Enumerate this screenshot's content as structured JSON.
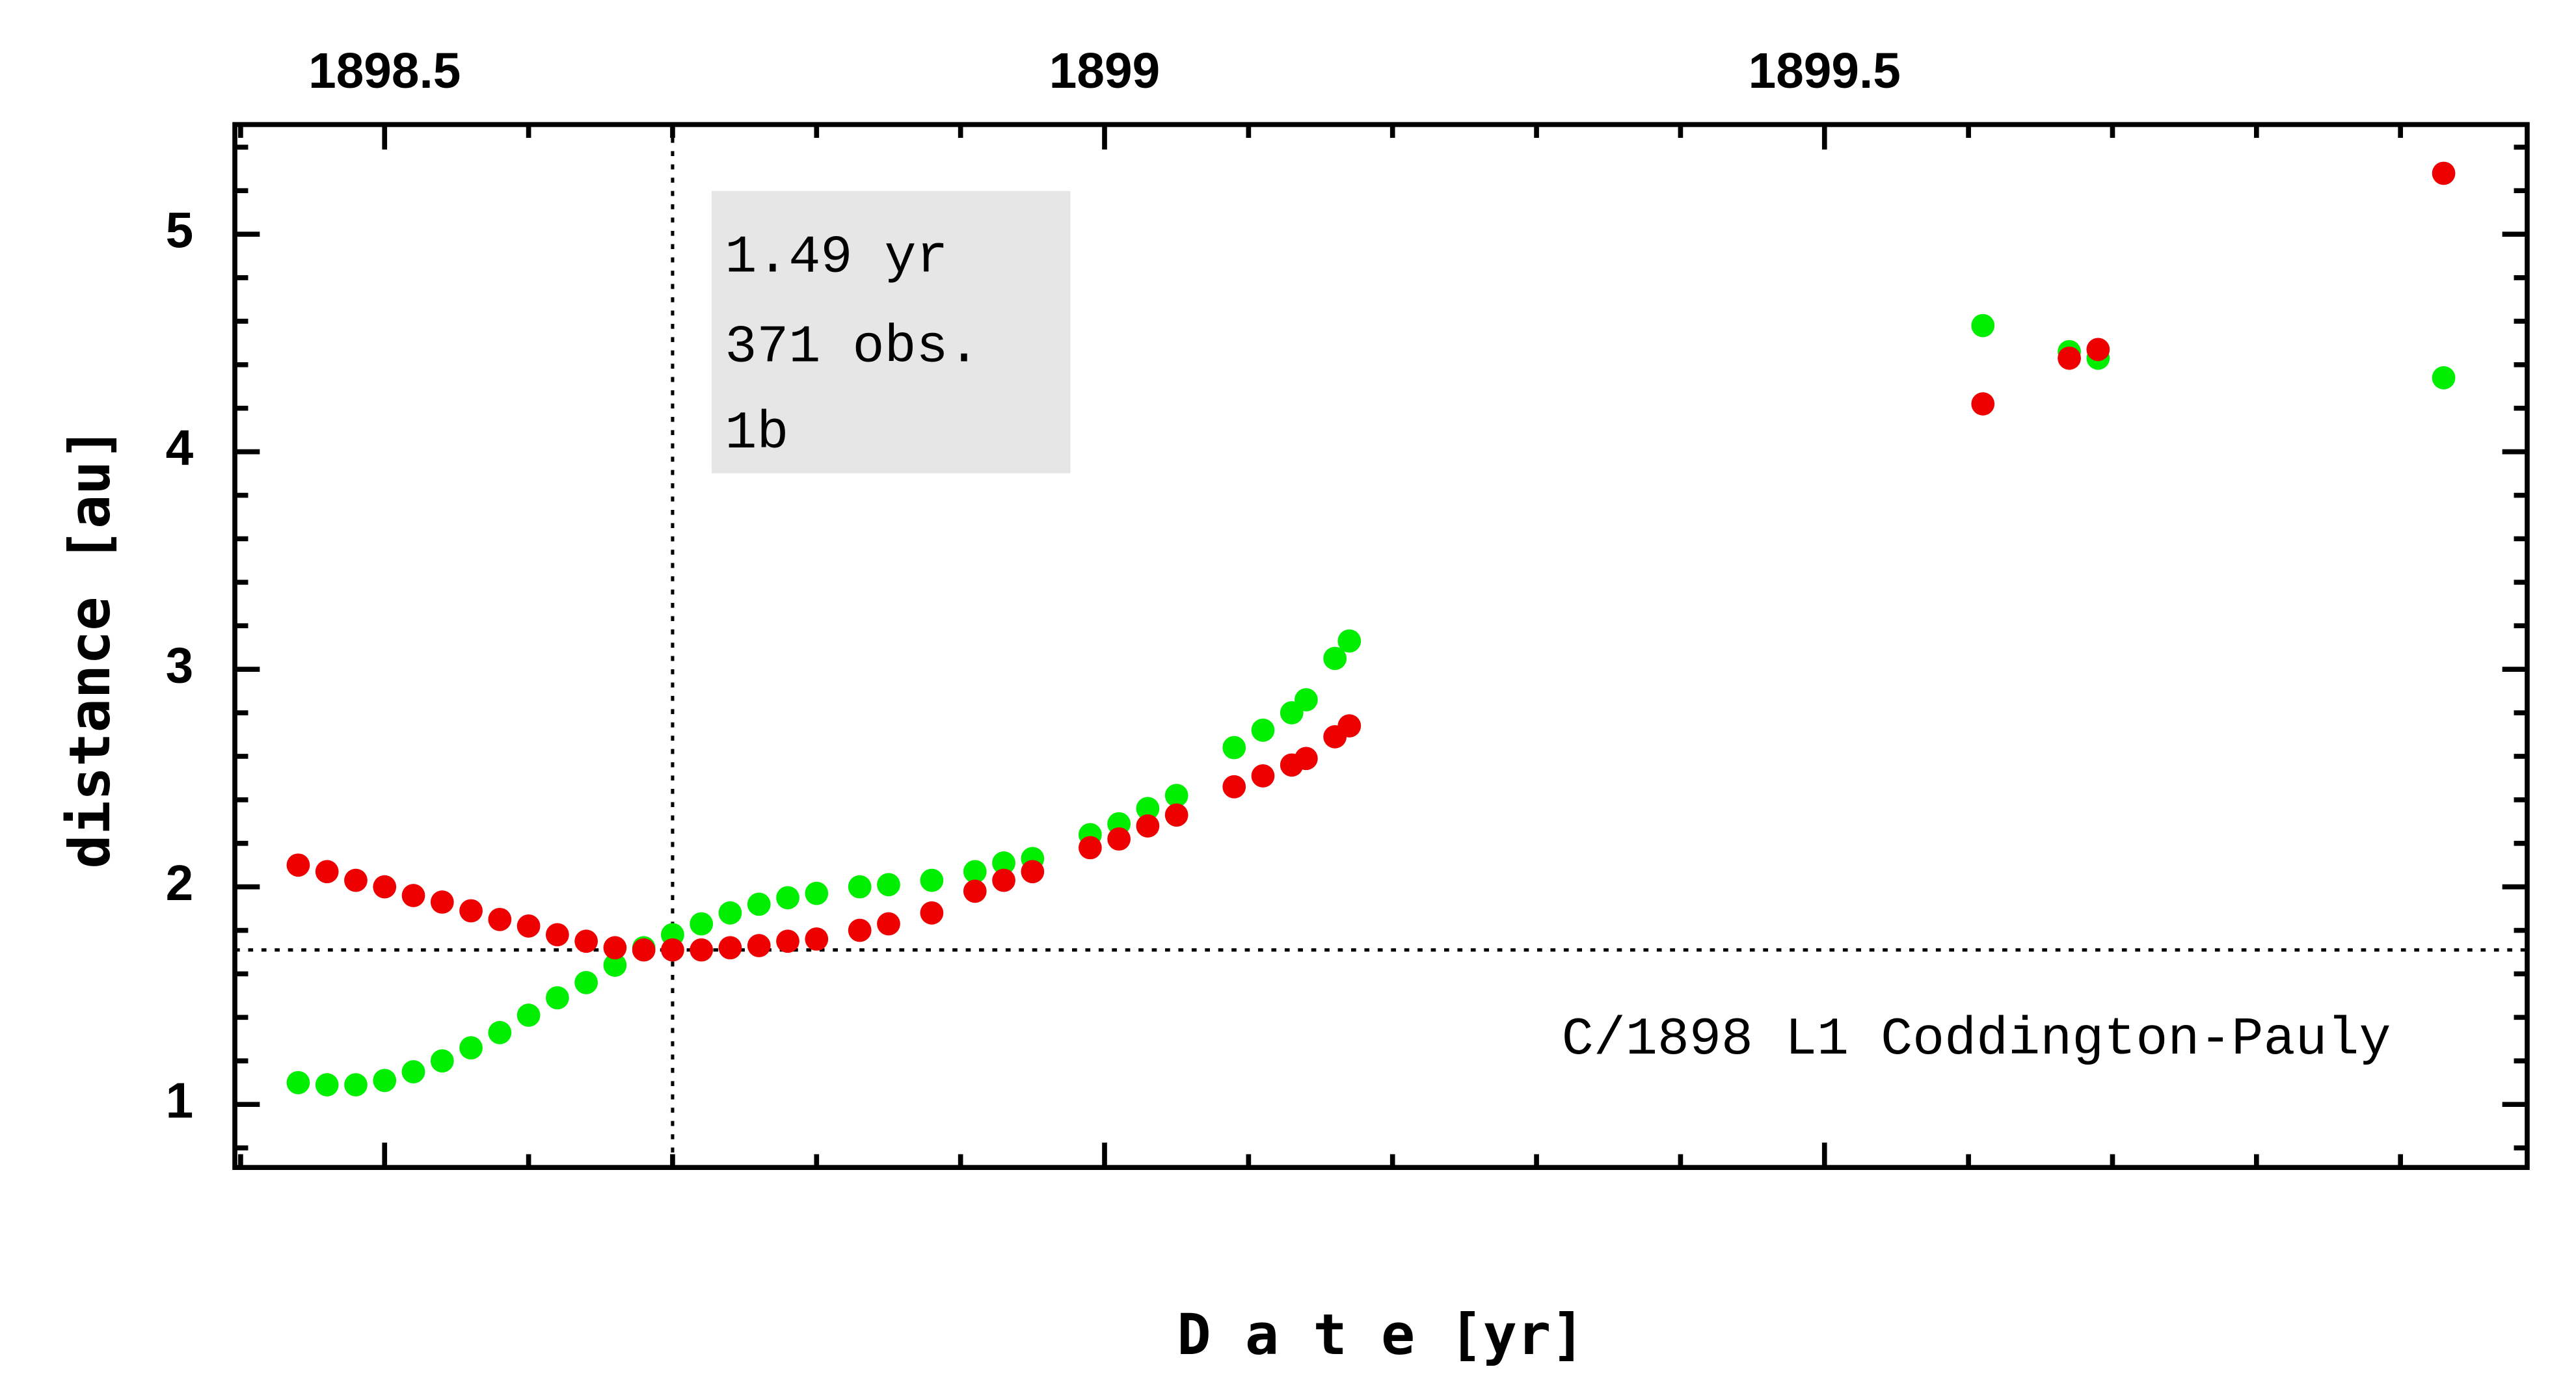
{
  "chart_data": {
    "type": "scatter",
    "xlabel": "D a t e [yr]",
    "ylabel": "distance [au]",
    "annotations": [
      "1.49 yr",
      "371 obs.",
      "1b"
    ],
    "label": "C/1898 L1 Coddington-Pauly",
    "x": [
      1898.44,
      1898.46,
      1898.48,
      1898.5,
      1898.52,
      1898.54,
      1898.56,
      1898.58,
      1898.6,
      1898.62,
      1898.64,
      1898.66,
      1898.68,
      1898.7,
      1898.72,
      1898.74,
      1898.76,
      1898.78,
      1898.8,
      1898.83,
      1898.85,
      1898.88,
      1898.91,
      1898.93,
      1898.95,
      1898.99,
      1899.01,
      1899.03,
      1899.05,
      1899.09,
      1899.11,
      1899.13,
      1899.14,
      1899.16,
      1899.17,
      1899.61,
      1899.67,
      1899.69,
      1899.93
    ],
    "series": [
      {
        "color": "#00ee00",
        "values": [
          1.1,
          1.09,
          1.09,
          1.11,
          1.15,
          1.2,
          1.26,
          1.33,
          1.41,
          1.49,
          1.56,
          1.64,
          1.72,
          1.78,
          1.83,
          1.88,
          1.92,
          1.95,
          1.97,
          2.0,
          2.01,
          2.03,
          2.07,
          2.11,
          2.13,
          2.24,
          2.29,
          2.36,
          2.42,
          2.64,
          2.72,
          2.8,
          2.86,
          3.05,
          3.13,
          4.58,
          4.46,
          4.43,
          4.34
        ]
      },
      {
        "color": "#ee0000",
        "values": [
          2.1,
          2.07,
          2.03,
          2.0,
          1.96,
          1.93,
          1.89,
          1.85,
          1.82,
          1.78,
          1.75,
          1.72,
          1.71,
          1.71,
          1.71,
          1.72,
          1.73,
          1.75,
          1.76,
          1.8,
          1.83,
          1.88,
          1.98,
          2.03,
          2.07,
          2.18,
          2.22,
          2.28,
          2.33,
          2.46,
          2.51,
          2.56,
          2.59,
          2.69,
          2.74,
          4.22,
          4.43,
          4.47,
          5.28
        ]
      }
    ],
    "vline": 1898.7,
    "hline": 1.71,
    "xlim": [
      1898.396,
      1899.988
    ],
    "ylim": [
      0.71,
      5.504
    ],
    "xticks": [
      1898.5,
      1899,
      1899.5
    ],
    "yticks": [
      1,
      2,
      3,
      4,
      5
    ],
    "xminorticks": [
      1898.4,
      1898.6,
      1898.7,
      1898.8,
      1898.9,
      1899.1,
      1899.2,
      1899.3,
      1899.4,
      1899.6,
      1899.7,
      1899.8,
      1899.9
    ],
    "yminorticks": [
      0.8,
      1.2,
      1.4,
      1.6,
      1.8,
      2.2,
      2.4,
      2.6,
      2.8,
      3.2,
      3.4,
      3.6,
      3.8,
      4.2,
      4.4,
      4.6,
      4.8,
      5.2,
      5.4
    ]
  }
}
